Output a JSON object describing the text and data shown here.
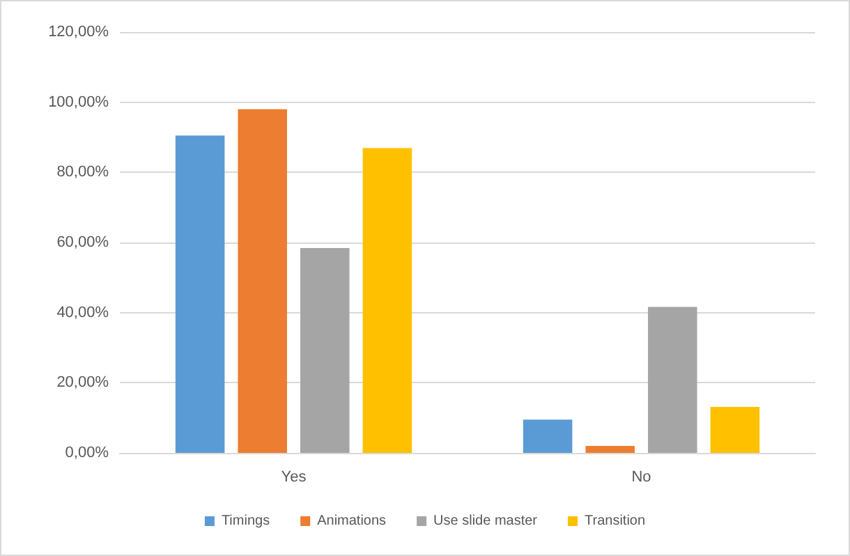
{
  "chart_data": {
    "type": "bar",
    "categories": [
      "Yes",
      "No"
    ],
    "series": [
      {
        "name": "Timings",
        "color": "#5b9bd5",
        "values": [
          90.5,
          9.5
        ]
      },
      {
        "name": "Animations",
        "color": "#ed7d31",
        "values": [
          98.0,
          2.0
        ]
      },
      {
        "name": "Use slide master",
        "color": "#a5a5a5",
        "values": [
          58.4,
          41.6
        ]
      },
      {
        "name": "Transition",
        "color": "#ffc000",
        "values": [
          86.9,
          13.1
        ]
      }
    ],
    "ylim": [
      0,
      120
    ],
    "yticks": [
      {
        "value": 0,
        "label": "0,00%"
      },
      {
        "value": 20,
        "label": "20,00%"
      },
      {
        "value": 40,
        "label": "40,00%"
      },
      {
        "value": 60,
        "label": "60,00%"
      },
      {
        "value": 80,
        "label": "80,00%"
      },
      {
        "value": 100,
        "label": "100,00%"
      },
      {
        "value": 120,
        "label": "120,00%"
      }
    ],
    "grid": "y",
    "legend": "bottom"
  }
}
